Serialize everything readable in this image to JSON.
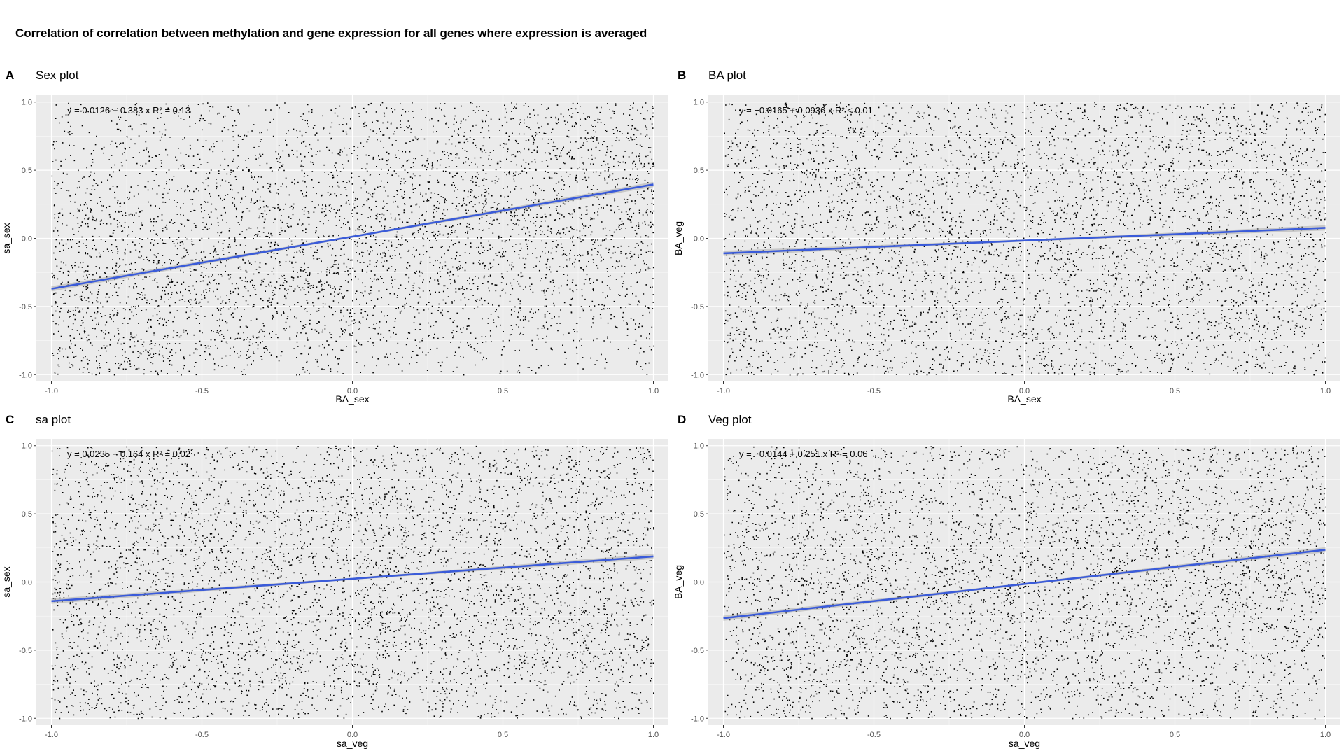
{
  "figure": {
    "title": "Correlation of correlation between methylation and gene expression for all genes where expression is averaged"
  },
  "colors": {
    "panel_background": "#ebebeb",
    "grid_major": "#ffffff",
    "points": "#000000",
    "fit_line": "#3a5bd9",
    "confidence_band": "#a6a6a6"
  },
  "chart_data": [
    {
      "type": "scatter",
      "tag": "A",
      "title": "Sex plot",
      "xlabel": "BA_sex",
      "ylabel": "sa_sex",
      "xlim": [
        -1.05,
        1.05
      ],
      "ylim": [
        -1.05,
        1.05
      ],
      "xticks": [
        -1.0,
        -0.5,
        0.0,
        0.5,
        1.0
      ],
      "yticks": [
        -1.0,
        -0.5,
        0.0,
        0.5,
        1.0
      ],
      "xtick_labels": [
        "-1.0",
        "-0.5",
        "0.0",
        "0.5",
        "1.0"
      ],
      "ytick_labels": [
        "-1.0",
        "-0.5",
        "0.0",
        "0.5",
        "1.0"
      ],
      "grid": true,
      "fit": {
        "intercept": 0.0126,
        "slope": 0.383
      },
      "equation": {
        "eq": "y = 0.0126 + 0.383 x",
        "r2": "R² = 0.13"
      },
      "points": {
        "count": 5000,
        "x_range": [
          -1,
          1
        ],
        "y_range": [
          -1,
          1
        ]
      }
    },
    {
      "type": "scatter",
      "tag": "B",
      "title": "BA plot",
      "xlabel": "BA_sex",
      "ylabel": "BA_veg",
      "xlim": [
        -1.05,
        1.05
      ],
      "ylim": [
        -1.05,
        1.05
      ],
      "xticks": [
        -1.0,
        -0.5,
        0.0,
        0.5,
        1.0
      ],
      "yticks": [
        -1.0,
        -0.5,
        0.0,
        0.5,
        1.0
      ],
      "xtick_labels": [
        "-1.0",
        "-0.5",
        "0.0",
        "0.5",
        "1.0"
      ],
      "ytick_labels": [
        "-1.0",
        "-0.5",
        "0.0",
        "0.5",
        "1.0"
      ],
      "grid": true,
      "fit": {
        "intercept": -0.0165,
        "slope": 0.0936
      },
      "equation": {
        "eq": "y = −0.0165 + 0.0936 x",
        "r2": "R² < 0.01"
      },
      "points": {
        "count": 5000,
        "x_range": [
          -1,
          1
        ],
        "y_range": [
          -1,
          1
        ]
      }
    },
    {
      "type": "scatter",
      "tag": "C",
      "title": "sa plot",
      "xlabel": "sa_veg",
      "ylabel": "sa_sex",
      "xlim": [
        -1.05,
        1.05
      ],
      "ylim": [
        -1.05,
        1.05
      ],
      "xticks": [
        -1.0,
        -0.5,
        0.0,
        0.5,
        1.0
      ],
      "yticks": [
        -1.0,
        -0.5,
        0.0,
        0.5,
        1.0
      ],
      "xtick_labels": [
        "-1.0",
        "-0.5",
        "0.0",
        "0.5",
        "1.0"
      ],
      "ytick_labels": [
        "-1.0",
        "-0.5",
        "0.0",
        "0.5",
        "1.0"
      ],
      "grid": true,
      "fit": {
        "intercept": 0.0235,
        "slope": 0.164
      },
      "equation": {
        "eq": "y = 0.0235 + 0.164 x",
        "r2": "R² = 0.02"
      },
      "points": {
        "count": 5000,
        "x_range": [
          -1,
          1
        ],
        "y_range": [
          -1,
          1
        ]
      }
    },
    {
      "type": "scatter",
      "tag": "D",
      "title": "Veg plot",
      "xlabel": "sa_veg",
      "ylabel": "BA_veg",
      "xlim": [
        -1.05,
        1.05
      ],
      "ylim": [
        -1.05,
        1.05
      ],
      "xticks": [
        -1.0,
        -0.5,
        0.0,
        0.5,
        1.0
      ],
      "yticks": [
        -1.0,
        -0.5,
        0.0,
        0.5,
        1.0
      ],
      "xtick_labels": [
        "-1.0",
        "-0.5",
        "0.0",
        "0.5",
        "1.0"
      ],
      "ytick_labels": [
        "-1.0",
        "-0.5",
        "0.0",
        "0.5",
        "1.0"
      ],
      "grid": true,
      "fit": {
        "intercept": -0.0144,
        "slope": 0.251
      },
      "equation": {
        "eq": "y = −0.0144 + 0.251 x",
        "r2": "R² = 0.06"
      },
      "points": {
        "count": 5000,
        "x_range": [
          -1,
          1
        ],
        "y_range": [
          -1,
          1
        ]
      }
    }
  ]
}
